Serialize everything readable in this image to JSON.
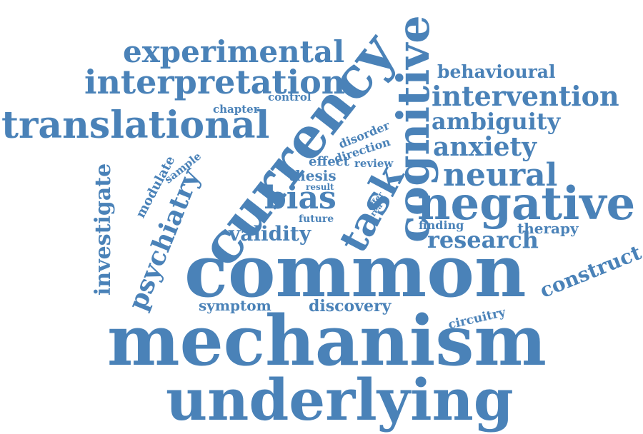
{
  "color": "#4a82b8",
  "words": {
    "experimental": "experimental",
    "interpretation": "interpretation",
    "translational": "translational",
    "control": "control",
    "chapter": "chapter",
    "currency": "currency",
    "cognitive": "cognitive",
    "behavioural": "behavioural",
    "intervention": "intervention",
    "ambiguity": "ambiguity",
    "anxiety": "anxiety",
    "disorder": "disorder",
    "direction": "direction",
    "investigate": "investigate",
    "modulate": "modulate",
    "sample": "sample",
    "psychiatry": "psychiatry",
    "effect": "effect",
    "review": "review",
    "thesis": "thesis",
    "result": "result",
    "task": "task",
    "neural": "neural",
    "negative": "negative",
    "bias": "bias",
    "offer": "offer",
    "area": "area",
    "future": "future",
    "validity": "validity",
    "finding": "finding",
    "therapy": "therapy",
    "research": "research",
    "construct": "construct",
    "common": "common",
    "symptom": "symptom",
    "discovery": "discovery",
    "circuitry": "circuitry",
    "mechanism": "mechanism",
    "underlying": "underlying"
  }
}
